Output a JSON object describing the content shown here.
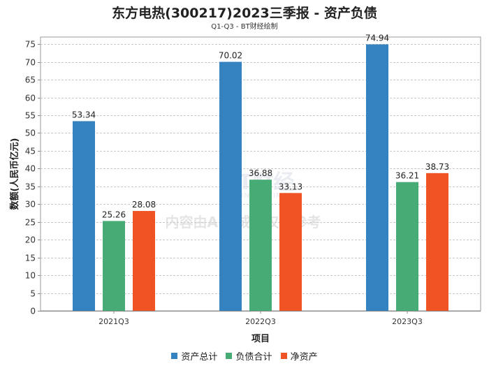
{
  "chart_data": {
    "type": "bar",
    "title": "东方电热(300217)2023三季报 - 资产负债",
    "subtitle": "Q1-Q3 - BT财经绘制",
    "xlabel": "项目",
    "ylabel": "数额(人民币亿元)",
    "ylim": [
      0,
      77
    ],
    "yticks": [
      0,
      5,
      10,
      15,
      20,
      25,
      30,
      35,
      40,
      45,
      50,
      55,
      60,
      65,
      70,
      75
    ],
    "grid": true,
    "legend_position": "bottom-center",
    "categories": [
      "2021Q3",
      "2022Q3",
      "2023Q3"
    ],
    "series": [
      {
        "name": "资产总计",
        "color": "#3482c0",
        "values": [
          53.34,
          70.02,
          74.94
        ],
        "labels": [
          "53.34",
          "70.02",
          "74.94"
        ]
      },
      {
        "name": "负债合计",
        "color": "#46ab75",
        "values": [
          25.26,
          36.88,
          36.21
        ],
        "labels": [
          "25.26",
          "36.88",
          "36.21"
        ]
      },
      {
        "name": "净资产",
        "color": "#f05424",
        "values": [
          28.08,
          33.13,
          38.73
        ],
        "labels": [
          "28.08",
          "33.13",
          "38.73"
        ]
      }
    ],
    "watermark": {
      "brand": "BT财经",
      "brand_en": "BUSINESS TIMES",
      "notice": "内容由AI生成，仅供参考"
    }
  }
}
